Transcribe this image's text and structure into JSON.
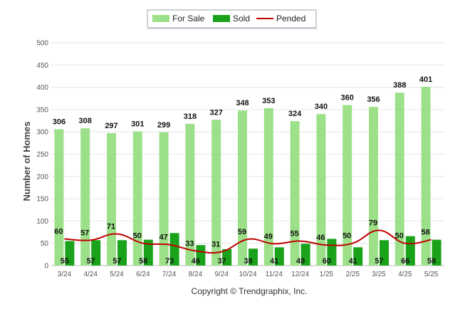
{
  "chart_data": {
    "type": "bar",
    "categories": [
      "3/24",
      "4/24",
      "5/24",
      "6/24",
      "7/24",
      "8/24",
      "9/24",
      "10/24",
      "11/24",
      "12/24",
      "1/25",
      "2/25",
      "3/25",
      "4/25",
      "5/25"
    ],
    "series": [
      {
        "name": "For Sale",
        "type": "bar",
        "color": "#9de08a",
        "values": [
          306,
          308,
          297,
          301,
          299,
          318,
          327,
          348,
          353,
          324,
          340,
          360,
          356,
          388,
          401
        ]
      },
      {
        "name": "Sold",
        "type": "bar",
        "color": "#1aa31a",
        "values": [
          55,
          57,
          57,
          58,
          73,
          46,
          37,
          38,
          41,
          49,
          60,
          41,
          57,
          66,
          58
        ]
      },
      {
        "name": "Pended",
        "type": "line",
        "color": "#c00000",
        "values": [
          60,
          57,
          71,
          50,
          47,
          33,
          31,
          59,
          49,
          55,
          46,
          50,
          79,
          50,
          58
        ]
      }
    ],
    "ylabel": "Number of Homes",
    "xlabel": "",
    "ylim": [
      0,
      500
    ],
    "yticks": [
      0,
      50,
      100,
      150,
      200,
      250,
      300,
      350,
      400,
      450,
      500
    ],
    "grid": true,
    "legend": "top-center",
    "footer": "Copyright © Trendgraphix, Inc."
  }
}
